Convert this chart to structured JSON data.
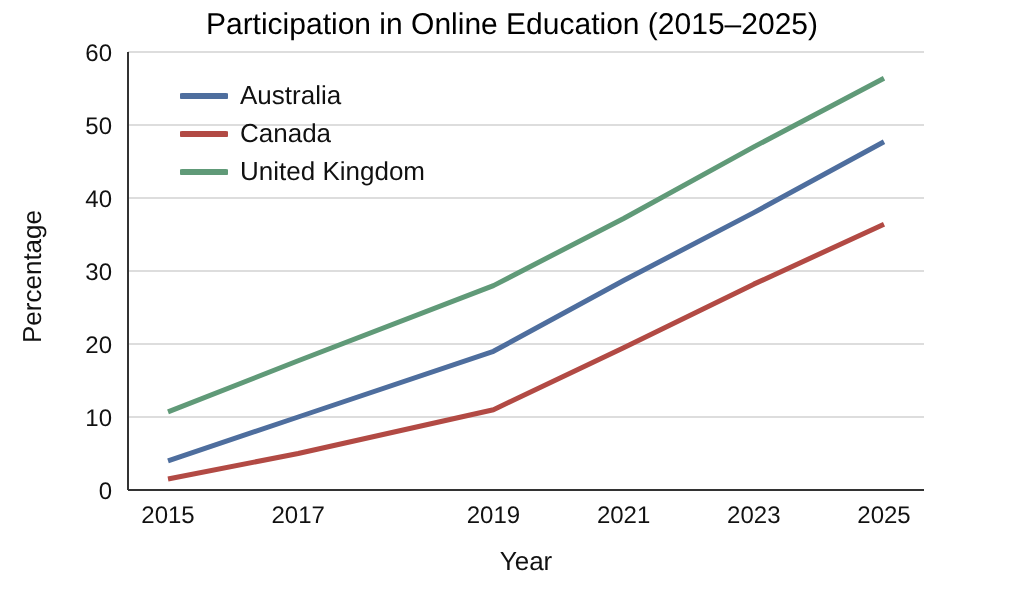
{
  "chart_data": {
    "type": "line",
    "title": "Participation in Online Education (2015–2025)",
    "xlabel": "Year",
    "ylabel": "Percentage",
    "categories": [
      "2015",
      null,
      "2017",
      null,
      null,
      "2019",
      null,
      "2021",
      null,
      "2023",
      null,
      "2025"
    ],
    "series": [
      {
        "name": "Australia",
        "color": "#4e6e9e",
        "values": [
          4,
          null,
          10,
          null,
          null,
          19,
          null,
          28.7,
          null,
          38,
          null,
          47.7
        ]
      },
      {
        "name": "Canada",
        "color": "#b24a44",
        "values": [
          1.5,
          null,
          5,
          null,
          null,
          11,
          null,
          19.5,
          null,
          28.2,
          null,
          36.4
        ]
      },
      {
        "name": "United Kingdom",
        "color": "#609a78",
        "values": [
          10.7,
          null,
          17.7,
          null,
          null,
          28,
          null,
          37.2,
          null,
          47,
          null,
          56.4
        ]
      }
    ],
    "ylim": [
      0,
      60
    ],
    "yticks": [
      0,
      10,
      20,
      30,
      40,
      50,
      60
    ],
    "grid": "y",
    "legend": "top left",
    "marker": "none",
    "line_style": "solid"
  }
}
